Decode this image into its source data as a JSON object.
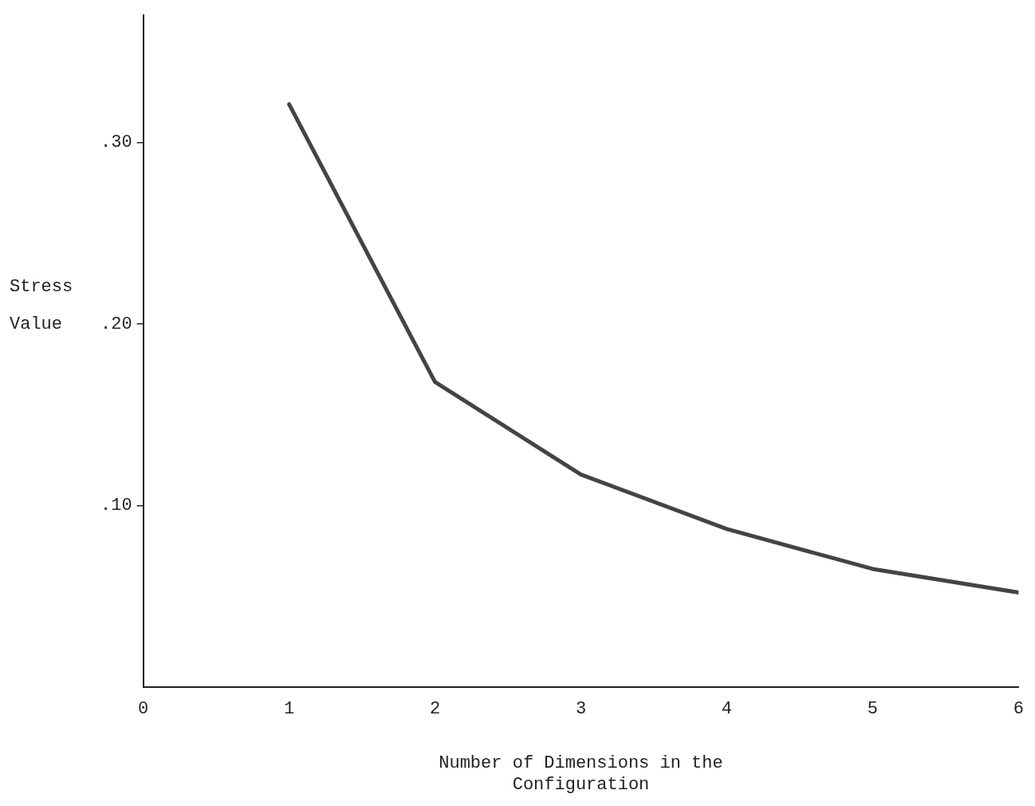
{
  "chart_data": {
    "type": "line",
    "xlabel": "Number of Dimensions in the Configuration",
    "ylabel": "Stress Value",
    "x": [
      1,
      2,
      3,
      4,
      5,
      6
    ],
    "series": [
      {
        "color": "#444444",
        "values": [
          0.321,
          0.168,
          0.117,
          0.087,
          0.065,
          0.052
        ]
      }
    ],
    "xlim": [
      0,
      6
    ],
    "xticks": [
      0,
      1,
      2,
      3,
      4,
      5,
      6
    ],
    "ylim": [
      0,
      0.37
    ],
    "yticks": [
      {
        "value": 0.1,
        "label": ".10"
      },
      {
        "value": 0.2,
        "label": ".20"
      },
      {
        "value": 0.3,
        "label": ".30"
      }
    ],
    "grid": false,
    "legend": false,
    "marker": "none",
    "line_style": "solid"
  }
}
